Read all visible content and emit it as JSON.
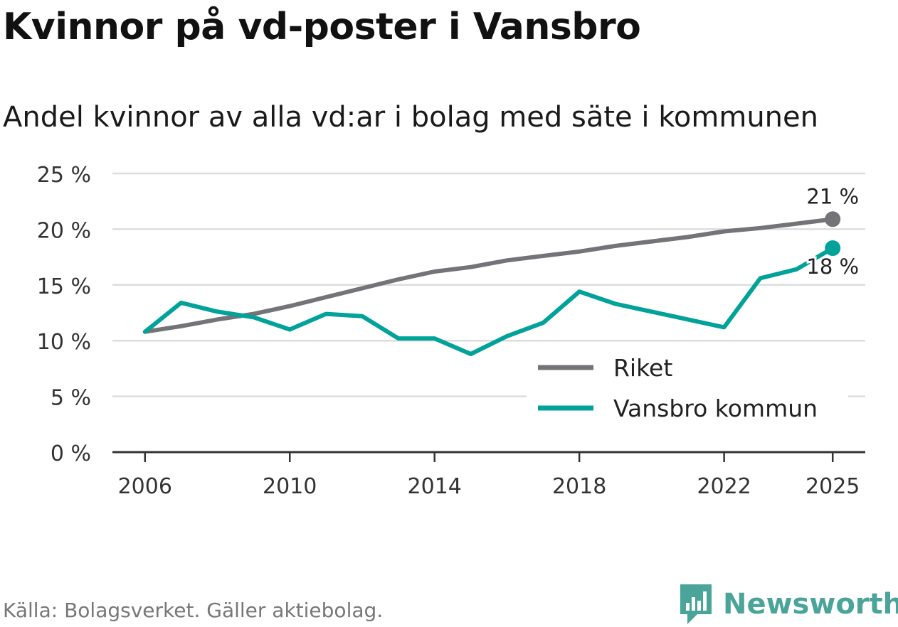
{
  "title": "Kvinnor på vd-poster i Vansbro",
  "subtitle": "Andel kvinnor av alla vd:ar i bolag med säte i kommunen",
  "source": "Källa: Bolagsverket. Gäller aktiebolag.",
  "brand": "Newsworthy",
  "colors": {
    "riket": "#747378",
    "vansbro": "#00a29a",
    "grid": "#dddddd",
    "axis": "#333333",
    "brand": "#4aa49a"
  },
  "chart_data": {
    "type": "line",
    "title": "Kvinnor på vd-poster i Vansbro",
    "subtitle": "Andel kvinnor av alla vd:ar i bolag med säte i kommunen",
    "xlabel": "",
    "ylabel": "",
    "x": [
      2006,
      2007,
      2008,
      2009,
      2010,
      2011,
      2012,
      2013,
      2014,
      2015,
      2016,
      2017,
      2018,
      2019,
      2020,
      2021,
      2022,
      2023,
      2024,
      2025
    ],
    "xticks": [
      2006,
      2010,
      2014,
      2018,
      2022,
      2025
    ],
    "xtick_labels": [
      "2006",
      "2010",
      "2014",
      "2018",
      "2022",
      "2025"
    ],
    "ylim": [
      0,
      25
    ],
    "yticks": [
      0,
      5,
      10,
      15,
      20,
      25
    ],
    "ytick_labels": [
      "0 %",
      "5 %",
      "10 %",
      "15 %",
      "20 %",
      "25 %"
    ],
    "grid": true,
    "legend_position": "bottom-right",
    "series": [
      {
        "name": "Riket",
        "color": "#747378",
        "values": [
          10.8,
          11.3,
          11.9,
          12.4,
          13.1,
          13.9,
          14.7,
          15.5,
          16.2,
          16.6,
          17.2,
          17.6,
          18.0,
          18.5,
          18.9,
          19.3,
          19.8,
          20.1,
          20.5,
          20.9
        ],
        "end_label": "21 %"
      },
      {
        "name": "Vansbro kommun",
        "color": "#00a29a",
        "values": [
          10.8,
          13.4,
          12.6,
          12.1,
          11.0,
          12.4,
          12.2,
          10.2,
          10.2,
          8.8,
          10.4,
          11.6,
          14.4,
          13.3,
          12.6,
          11.9,
          11.2,
          15.6,
          16.4,
          18.3
        ],
        "end_label": "18 %"
      }
    ]
  }
}
